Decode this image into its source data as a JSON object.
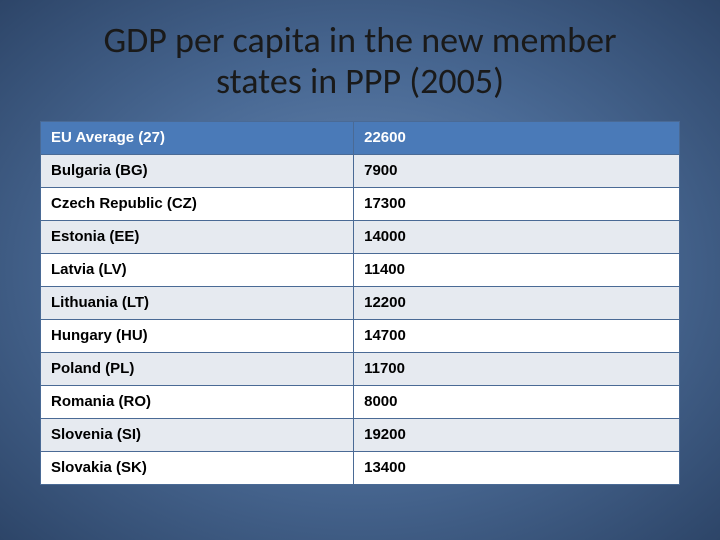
{
  "title": "GDP per capita in the new member states in PPP (2005)",
  "table": {
    "rows": [
      {
        "label": "EU Average (27)",
        "value": "22600",
        "header": true
      },
      {
        "label": "Bulgaria (BG)",
        "value": "7900"
      },
      {
        "label": "Czech Republic (CZ)",
        "value": "17300"
      },
      {
        "label": "Estonia (EE)",
        "value": "14000"
      },
      {
        "label": "Latvia (LV)",
        "value": "11400"
      },
      {
        "label": "Lithuania (LT)",
        "value": "12200"
      },
      {
        "label": "Hungary (HU)",
        "value": "14700"
      },
      {
        "label": "Poland (PL)",
        "value": "11700"
      },
      {
        "label": "Romania (RO)",
        "value": "8000"
      },
      {
        "label": "Slovenia (SI)",
        "value": "19200"
      },
      {
        "label": "Slovakia (SK)",
        "value": "13400"
      }
    ],
    "header_bg": "#4a7ab8",
    "header_fg": "#ffffff",
    "alt_bg": "#e6eaf0",
    "border_color": "#4a6a95",
    "font_family": "Arial",
    "font_size": 15,
    "font_weight": "bold"
  },
  "background": {
    "gradient_inner": "#6b8bb5",
    "gradient_mid": "#4a6a95",
    "gradient_outer": "#2d4568"
  }
}
